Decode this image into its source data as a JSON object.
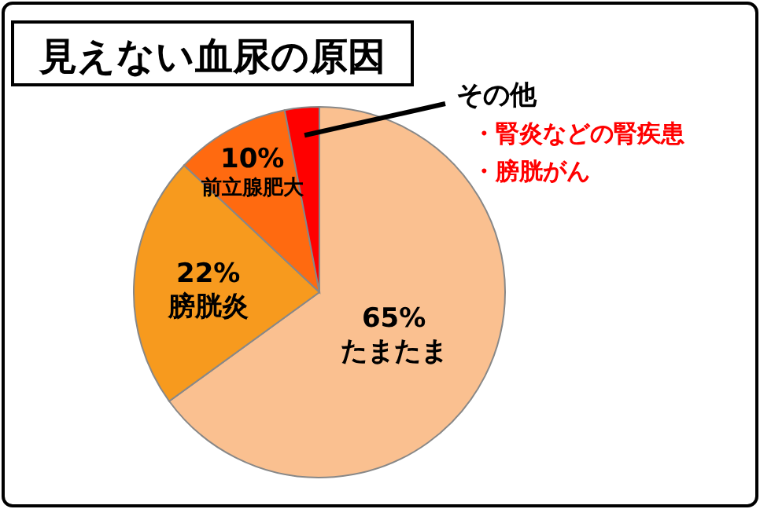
{
  "chart_data": {
    "type": "pie",
    "title": "見えない血尿の原因",
    "categories": [
      "たまたま",
      "膀胱炎",
      "前立腺肥大",
      "その他"
    ],
    "values": [
      65,
      22,
      10,
      3
    ],
    "colors": [
      "#fac090",
      "#f79a1e",
      "#ff6a10",
      "#ff0000"
    ],
    "value_labels": [
      "65%",
      "22%",
      "10%",
      null
    ],
    "annotations": [
      "・腎炎などの腎疾患",
      "・膀胱がん"
    ]
  }
}
